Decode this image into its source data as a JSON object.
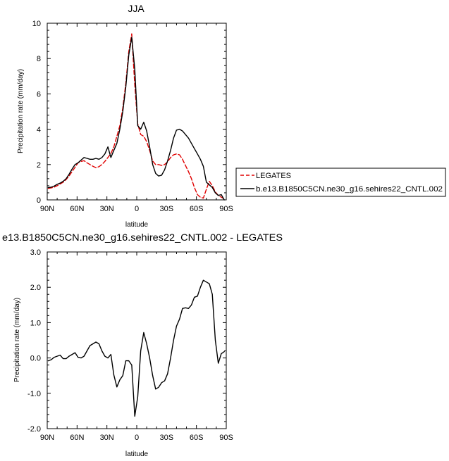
{
  "chart_data": [
    {
      "type": "line",
      "title": "JJA",
      "xlabel": "latitude",
      "ylabel": "Precipitation rate (mm/day)",
      "xlim": [
        90,
        -90
      ],
      "ylim": [
        0,
        10
      ],
      "xticks": [
        90,
        60,
        30,
        0,
        -30,
        -60,
        -90
      ],
      "xticklabels": [
        "90N",
        "60N",
        "30N",
        "0",
        "30S",
        "60S",
        "90S"
      ],
      "yticks": [
        0,
        2,
        4,
        6,
        8,
        10
      ],
      "yticklabels": [
        "0",
        "2",
        "4",
        "6",
        "8",
        "10"
      ],
      "legend": {
        "position": "right",
        "entries": [
          "LEGATES",
          "b.e13.B1850C5CN.ne30_g16.sehires22_CNTL.002"
        ]
      },
      "series": [
        {
          "name": "LEGATES",
          "color": "#e00000",
          "style": "dashed",
          "x": [
            89,
            86,
            83,
            80,
            77,
            74,
            71,
            68,
            65,
            62,
            59,
            56,
            53,
            50,
            47,
            44,
            41,
            38,
            35,
            32,
            29,
            26,
            23,
            20,
            17,
            14,
            11,
            8,
            5,
            2,
            -1,
            -4,
            -7,
            -10,
            -13,
            -16,
            -19,
            -22,
            -25,
            -28,
            -31,
            -34,
            -37,
            -40,
            -43,
            -46,
            -49,
            -52,
            -55,
            -58,
            -61,
            -64,
            -67,
            -70,
            -73,
            -76,
            -79,
            -82,
            -85,
            -88
          ],
          "values": [
            0.65,
            0.68,
            0.72,
            0.8,
            0.9,
            1.0,
            1.15,
            1.35,
            1.6,
            1.85,
            2.1,
            2.18,
            2.22,
            2.1,
            2.0,
            1.9,
            1.82,
            1.88,
            2.0,
            2.18,
            2.4,
            2.62,
            3.0,
            3.6,
            4.2,
            5.2,
            6.6,
            8.4,
            9.4,
            6.5,
            4.3,
            3.7,
            3.6,
            3.3,
            2.8,
            2.2,
            2.0,
            2.0,
            1.95,
            2.0,
            2.15,
            2.4,
            2.55,
            2.6,
            2.55,
            2.3,
            1.95,
            1.6,
            1.2,
            0.7,
            0.3,
            0.15,
            0.1,
            0.6,
            1.05,
            0.8,
            0.45,
            0.25,
            0.15,
            0.05
          ]
        },
        {
          "name": "b.e13.B1850C5CN.ne30_g16.sehires22_CNTL.002",
          "color": "#000000",
          "style": "solid",
          "x": [
            89,
            86,
            83,
            80,
            77,
            74,
            71,
            68,
            65,
            62,
            59,
            56,
            53,
            50,
            47,
            44,
            41,
            38,
            35,
            32,
            29,
            26,
            23,
            20,
            17,
            14,
            11,
            8,
            5,
            2,
            -1,
            -4,
            -7,
            -10,
            -13,
            -16,
            -19,
            -22,
            -25,
            -28,
            -31,
            -34,
            -37,
            -40,
            -43,
            -46,
            -49,
            -52,
            -55,
            -58,
            -61,
            -64,
            -67,
            -70,
            -73,
            -76,
            -79,
            -82,
            -85,
            -88
          ],
          "values": [
            0.7,
            0.72,
            0.78,
            0.88,
            0.95,
            1.05,
            1.2,
            1.45,
            1.75,
            2.0,
            2.1,
            2.25,
            2.4,
            2.35,
            2.3,
            2.3,
            2.35,
            2.3,
            2.4,
            2.6,
            3.0,
            2.4,
            2.8,
            3.2,
            4.0,
            5.0,
            6.4,
            8.2,
            9.2,
            7.4,
            4.2,
            4.0,
            4.4,
            3.9,
            3.0,
            2.0,
            1.5,
            1.35,
            1.4,
            1.7,
            2.2,
            2.8,
            3.5,
            3.95,
            4.0,
            3.9,
            3.7,
            3.5,
            3.2,
            2.9,
            2.6,
            2.3,
            1.9,
            1.0,
            0.85,
            0.7,
            0.4,
            0.25,
            0.3,
            0.0
          ]
        }
      ]
    },
    {
      "type": "line",
      "title": "e13.B1850C5CN.ne30_g16.sehires22_CNTL.002 - LEGATES",
      "xlabel": "latitude",
      "ylabel": "Precipitation rate (mm/day)",
      "xlim": [
        90,
        -90
      ],
      "ylim": [
        -2.0,
        3.0
      ],
      "xticks": [
        90,
        60,
        30,
        0,
        -30,
        -60,
        -90
      ],
      "xticklabels": [
        "90N",
        "60N",
        "30N",
        "0",
        "30S",
        "60S",
        "90S"
      ],
      "yticks": [
        -2,
        -1,
        0,
        1,
        2,
        3
      ],
      "yticklabels": [
        "-2.0",
        "-1.0",
        "0.0",
        "1.0",
        "2.0",
        "3.0"
      ],
      "series": [
        {
          "color": "#000000",
          "style": "solid",
          "x": [
            89,
            86,
            83,
            80,
            77,
            74,
            71,
            68,
            65,
            62,
            59,
            56,
            53,
            50,
            47,
            44,
            41,
            38,
            35,
            32,
            29,
            26,
            23,
            20,
            17,
            14,
            11,
            8,
            5,
            2,
            -1,
            -4,
            -7,
            -10,
            -13,
            -16,
            -19,
            -22,
            -25,
            -28,
            -31,
            -34,
            -37,
            -40,
            -43,
            -46,
            -49,
            -52,
            -55,
            -58,
            -61,
            -64,
            -67,
            -70,
            -73,
            -76,
            -79,
            -82,
            -85,
            -88
          ],
          "values": [
            -0.08,
            -0.05,
            0.02,
            0.05,
            0.08,
            -0.02,
            -0.02,
            0.05,
            0.1,
            0.15,
            0.02,
            0.0,
            0.05,
            0.2,
            0.35,
            0.4,
            0.45,
            0.4,
            0.2,
            0.05,
            0.0,
            0.1,
            -0.48,
            -0.82,
            -0.62,
            -0.5,
            -0.08,
            -0.08,
            -0.2,
            -1.65,
            -1.1,
            0.2,
            0.72,
            0.4,
            0.0,
            -0.5,
            -0.88,
            -0.83,
            -0.7,
            -0.65,
            -0.45,
            0.0,
            0.5,
            0.9,
            1.1,
            1.4,
            1.42,
            1.4,
            1.5,
            1.72,
            1.75,
            2.0,
            2.2,
            2.15,
            2.1,
            1.8,
            0.5,
            -0.15,
            0.12,
            0.18
          ]
        }
      ]
    }
  ]
}
